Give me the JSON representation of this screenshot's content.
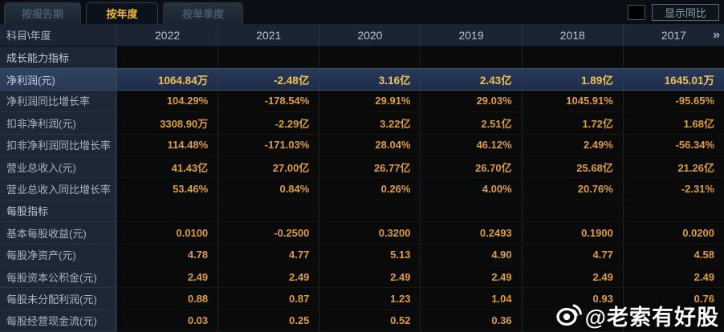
{
  "tabs": [
    {
      "label": "按报告期",
      "active": false
    },
    {
      "label": "按年度",
      "active": true
    },
    {
      "label": "按单季度",
      "active": false
    }
  ],
  "controls": {
    "show_yoy_label": "显示同比",
    "checkbox_checked": false
  },
  "table": {
    "corner_label": "科目\\年度",
    "years": [
      "2022",
      "2021",
      "2020",
      "2019",
      "2018",
      "2017"
    ],
    "more_icon": "»",
    "rows": [
      {
        "type": "section",
        "label": "成长能力指标",
        "values": [
          "",
          "",
          "",
          "",
          "",
          ""
        ]
      },
      {
        "type": "highlight",
        "label": "净利润(元)",
        "values": [
          "1064.84万",
          "-2.48亿",
          "3.16亿",
          "2.43亿",
          "1.89亿",
          "1645.01万"
        ]
      },
      {
        "type": "data",
        "label": "净利润同比增长率",
        "values": [
          "104.29%",
          "-178.54%",
          "29.91%",
          "29.03%",
          "1045.91%",
          "-95.65%"
        ]
      },
      {
        "type": "data",
        "label": "扣非净利润(元)",
        "values": [
          "3308.90万",
          "-2.29亿",
          "3.22亿",
          "2.51亿",
          "1.72亿",
          "1.68亿"
        ]
      },
      {
        "type": "data",
        "label": "扣非净利润同比增长率",
        "values": [
          "114.48%",
          "-171.03%",
          "28.04%",
          "46.12%",
          "2.49%",
          "-56.34%"
        ]
      },
      {
        "type": "data",
        "label": "营业总收入(元)",
        "values": [
          "41.43亿",
          "27.00亿",
          "26.77亿",
          "26.70亿",
          "25.68亿",
          "21.26亿"
        ]
      },
      {
        "type": "data",
        "label": "营业总收入同比增长率",
        "values": [
          "53.46%",
          "0.84%",
          "0.26%",
          "4.00%",
          "20.76%",
          "-2.31%"
        ]
      },
      {
        "type": "section",
        "label": "每股指标",
        "values": [
          "",
          "",
          "",
          "",
          "",
          ""
        ]
      },
      {
        "type": "data",
        "label": "基本每股收益(元)",
        "values": [
          "0.0100",
          "-0.2500",
          "0.3200",
          "0.2493",
          "0.1900",
          "0.0200"
        ]
      },
      {
        "type": "data",
        "label": "每股净资产(元)",
        "values": [
          "4.78",
          "4.77",
          "5.13",
          "4.90",
          "4.77",
          "4.58"
        ]
      },
      {
        "type": "data",
        "label": "每股资本公积金(元)",
        "values": [
          "2.49",
          "2.49",
          "2.49",
          "2.49",
          "2.49",
          "2.49"
        ]
      },
      {
        "type": "data",
        "label": "每股未分配利润(元)",
        "values": [
          "0.88",
          "0.87",
          "1.23",
          "1.04",
          "0.93",
          "0.76"
        ]
      },
      {
        "type": "data",
        "label": "每股经营现金流(元)",
        "values": [
          "0.03",
          "0.25",
          "0.52",
          "0.36",
          "",
          ""
        ]
      }
    ]
  },
  "watermark": {
    "text": "@老索有好股",
    "icon": "weibo-icon"
  },
  "colors": {
    "accent_gold": "#f2b838",
    "value_orange": "#dd9d44",
    "highlight_row_bg": "#273a58",
    "panel_navy": "#1d2836",
    "header_navy": "#1b2433"
  }
}
